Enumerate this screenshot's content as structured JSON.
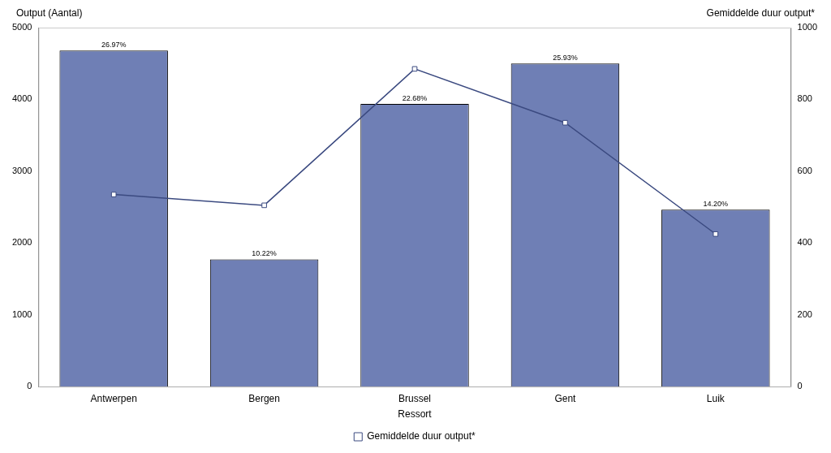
{
  "chart_data": {
    "type": "bar",
    "x_label": "Ressort",
    "y_label": "Output (Aantal)",
    "y2_label": "Gemiddelde duur output*",
    "categories": [
      "Antwerpen",
      "Bergen",
      "Brussel",
      "Gent",
      "Luik"
    ],
    "series": [
      {
        "type": "bar",
        "color": "#6f7fb5",
        "values": [
          4680,
          1773,
          3936,
          4500,
          2464
        ],
        "share_labels": [
          "26.97%",
          "10.22%",
          "22.68%",
          "25.93%",
          "14.20%"
        ]
      },
      {
        "name": "Gemiddelde duur output*",
        "type": "line",
        "axis": "y2",
        "color": "#3b4a80",
        "marker": "square",
        "line_style": "solid",
        "values": [
          535,
          505,
          885,
          735,
          425
        ]
      }
    ],
    "ylim": [
      0,
      5000
    ],
    "yticks": [
      0,
      1000,
      2000,
      3000,
      4000,
      5000
    ],
    "y2lim": [
      0,
      1000
    ],
    "y2ticks": [
      0,
      200,
      400,
      600,
      800,
      1000
    ],
    "grid": false,
    "legend": "bottom"
  }
}
